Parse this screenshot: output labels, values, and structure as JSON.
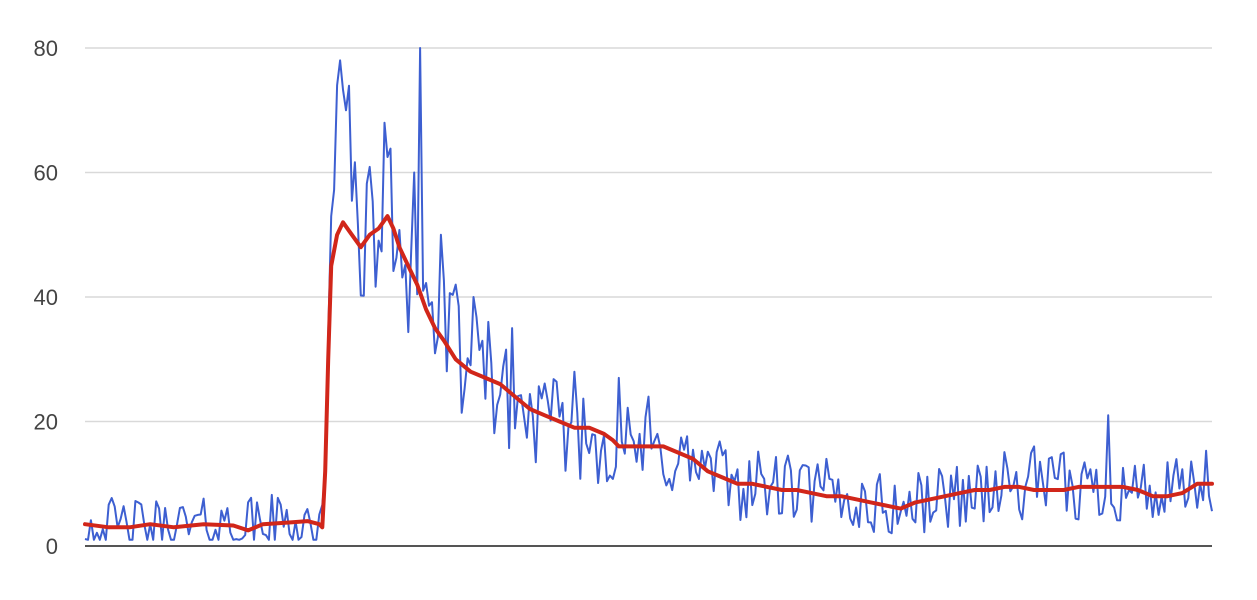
{
  "chart_data": {
    "type": "line",
    "title": "",
    "xlabel": "",
    "ylabel": "",
    "ylim": [
      0,
      80
    ],
    "y_ticks": [
      "0",
      "20",
      "40",
      "60",
      "80"
    ],
    "grid": true,
    "legend": "none",
    "colors": {
      "raw": "#3d5fd1",
      "smoothed": "#d1261a",
      "grid": "#d9d9d9",
      "baseline": "#555555"
    },
    "x_count": 380,
    "series": [
      {
        "style": "raw",
        "anchors": [
          [
            0,
            3.5
          ],
          [
            10,
            3
          ],
          [
            25,
            3
          ],
          [
            40,
            3
          ],
          [
            60,
            3.5
          ],
          [
            75,
            4
          ],
          [
            80,
            3
          ],
          [
            81,
            8
          ],
          [
            82,
            30
          ],
          [
            83,
            45
          ],
          [
            84,
            60
          ],
          [
            85,
            68
          ],
          [
            86,
            75
          ],
          [
            87,
            72
          ],
          [
            89,
            60
          ],
          [
            91,
            55
          ],
          [
            93,
            52
          ],
          [
            95,
            50
          ],
          [
            97,
            48
          ],
          [
            99,
            52
          ],
          [
            101,
            54
          ],
          [
            103,
            53
          ],
          [
            105,
            51
          ],
          [
            107,
            49
          ],
          [
            109,
            46
          ],
          [
            111,
            42
          ],
          [
            113,
            40
          ],
          [
            115,
            38
          ],
          [
            117,
            37
          ],
          [
            119,
            36
          ],
          [
            121,
            34
          ],
          [
            125,
            31
          ],
          [
            130,
            29
          ],
          [
            135,
            27
          ],
          [
            140,
            25
          ],
          [
            145,
            22
          ],
          [
            150,
            21
          ],
          [
            155,
            20
          ],
          [
            160,
            19
          ],
          [
            170,
            17
          ],
          [
            180,
            16
          ],
          [
            190,
            15
          ],
          [
            200,
            14
          ],
          [
            210,
            12
          ],
          [
            220,
            10
          ],
          [
            230,
            9.5
          ],
          [
            240,
            9
          ],
          [
            250,
            8
          ],
          [
            260,
            7
          ],
          [
            275,
            6
          ],
          [
            290,
            8
          ],
          [
            310,
            9.5
          ],
          [
            330,
            9
          ],
          [
            350,
            9.5
          ],
          [
            365,
            8
          ],
          [
            380,
            10
          ]
        ],
        "noise": 3,
        "spikes": [
          [
            86,
            78
          ],
          [
            85,
            74
          ],
          [
            88,
            70
          ],
          [
            101,
            68
          ],
          [
            111,
            60
          ],
          [
            113,
            80
          ],
          [
            120,
            50
          ],
          [
            125,
            42
          ],
          [
            131,
            40
          ],
          [
            136,
            36
          ],
          [
            144,
            35
          ],
          [
            165,
            28
          ],
          [
            180,
            27
          ],
          [
            190,
            24
          ],
          [
            250,
            14
          ],
          [
            345,
            21
          ],
          [
            320,
            16
          ],
          [
            330,
            15
          ]
        ]
      },
      {
        "style": "smoothed",
        "points": [
          [
            0,
            3.5
          ],
          [
            8,
            3
          ],
          [
            15,
            3
          ],
          [
            22,
            3.5
          ],
          [
            30,
            3
          ],
          [
            40,
            3.5
          ],
          [
            50,
            3.3
          ],
          [
            55,
            2.5
          ],
          [
            60,
            3.5
          ],
          [
            70,
            3.8
          ],
          [
            75,
            4
          ],
          [
            79,
            3.5
          ],
          [
            80,
            3
          ],
          [
            81,
            12
          ],
          [
            82,
            30
          ],
          [
            83,
            45
          ],
          [
            85,
            50
          ],
          [
            87,
            52
          ],
          [
            90,
            50
          ],
          [
            93,
            48
          ],
          [
            96,
            50
          ],
          [
            99,
            51
          ],
          [
            102,
            53
          ],
          [
            104,
            51
          ],
          [
            106,
            48
          ],
          [
            108,
            46
          ],
          [
            110,
            44
          ],
          [
            112,
            42
          ],
          [
            115,
            38
          ],
          [
            118,
            35
          ],
          [
            121,
            33
          ],
          [
            125,
            30
          ],
          [
            130,
            28
          ],
          [
            135,
            27
          ],
          [
            140,
            26
          ],
          [
            145,
            24
          ],
          [
            150,
            22
          ],
          [
            155,
            21
          ],
          [
            160,
            20
          ],
          [
            165,
            19
          ],
          [
            170,
            19
          ],
          [
            175,
            18
          ],
          [
            178,
            17
          ],
          [
            180,
            16
          ],
          [
            185,
            16
          ],
          [
            190,
            16
          ],
          [
            195,
            16
          ],
          [
            200,
            15
          ],
          [
            205,
            14
          ],
          [
            210,
            12
          ],
          [
            215,
            11
          ],
          [
            220,
            10
          ],
          [
            225,
            10
          ],
          [
            230,
            9.5
          ],
          [
            235,
            9
          ],
          [
            240,
            9
          ],
          [
            245,
            8.5
          ],
          [
            250,
            8
          ],
          [
            255,
            8
          ],
          [
            260,
            7.5
          ],
          [
            265,
            7
          ],
          [
            270,
            6.5
          ],
          [
            275,
            6
          ],
          [
            280,
            7
          ],
          [
            285,
            7.5
          ],
          [
            290,
            8
          ],
          [
            295,
            8.5
          ],
          [
            300,
            9
          ],
          [
            305,
            9
          ],
          [
            310,
            9.5
          ],
          [
            315,
            9.5
          ],
          [
            320,
            9
          ],
          [
            325,
            9
          ],
          [
            330,
            9
          ],
          [
            335,
            9.5
          ],
          [
            340,
            9.5
          ],
          [
            345,
            9.5
          ],
          [
            350,
            9.5
          ],
          [
            355,
            9
          ],
          [
            360,
            8
          ],
          [
            365,
            8
          ],
          [
            370,
            8.5
          ],
          [
            375,
            10
          ],
          [
            380,
            10
          ]
        ]
      }
    ]
  }
}
